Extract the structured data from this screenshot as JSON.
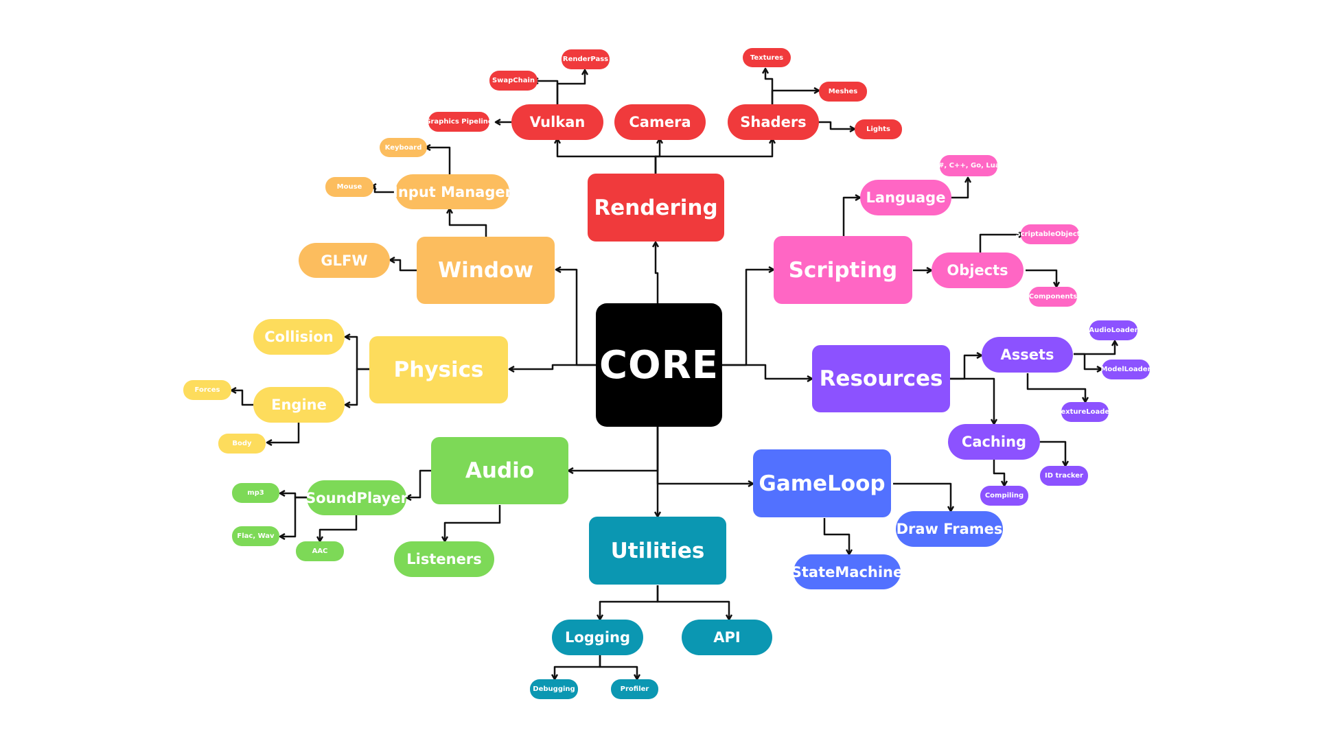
{
  "colors": {
    "core": "#000000",
    "rendering": "#f03a3c",
    "window": "#fcbd5e",
    "physics": "#fddc5c",
    "audio": "#7dd957",
    "utilities": "#0b97b2",
    "gameloop": "#5271ff",
    "resources": "#8c52ff",
    "scripting": "#ff66c4",
    "connector": "#111111"
  },
  "core": {
    "label": "CORE"
  },
  "rendering": {
    "label": "Rendering",
    "vulkan": {
      "label": "Vulkan",
      "graphics_pipeline": "Graphics Pipeline",
      "swapchain": "SwapChain",
      "renderpass": "RenderPass"
    },
    "camera": {
      "label": "Camera"
    },
    "shaders": {
      "label": "Shaders",
      "textures": "Textures",
      "meshes": "Meshes",
      "lights": "Lights"
    }
  },
  "window": {
    "label": "Window",
    "glfw": "GLFW",
    "input_manager": {
      "label": "Input Manager",
      "keyboard": "Keyboard",
      "mouse": "Mouse"
    }
  },
  "physics": {
    "label": "Physics",
    "collision": "Collision",
    "engine": {
      "label": "Engine",
      "forces": "Forces",
      "body": "Body"
    }
  },
  "audio": {
    "label": "Audio",
    "soundplayer": {
      "label": "SoundPlayer",
      "mp3": "mp3",
      "flac_wav": "Flac, Wav",
      "aac": "AAC"
    },
    "listeners": "Listeners"
  },
  "utilities": {
    "label": "Utilities",
    "logging": {
      "label": "Logging",
      "debugging": "Debugging",
      "profiler": "Profiler"
    },
    "api": "API"
  },
  "gameloop": {
    "label": "GameLoop",
    "draw_frames": "Draw Frames",
    "statemachine": "StateMachine"
  },
  "resources": {
    "label": "Resources",
    "assets": {
      "label": "Assets",
      "audioloader": "AudioLoader",
      "modelloader": "ModelLoader",
      "textureloader": "TextureLoader"
    },
    "caching": {
      "label": "Caching",
      "id_tracker": "ID tracker",
      "compiling": "Compiling"
    }
  },
  "scripting": {
    "label": "Scripting",
    "language": {
      "label": "Language",
      "langs": "C#, C++, Go, Lua?"
    },
    "objects": {
      "label": "Objects",
      "scriptableobjects": "ScriptableObjects",
      "components": "Components"
    }
  }
}
